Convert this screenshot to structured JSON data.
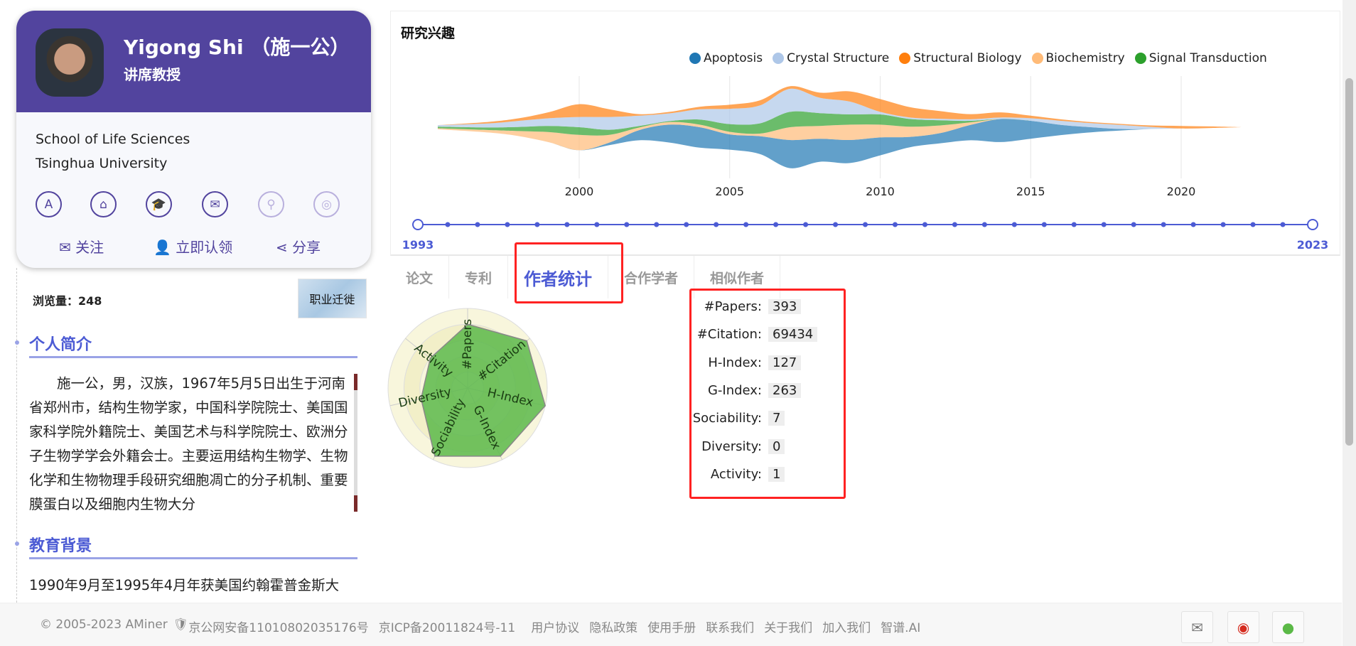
{
  "profile": {
    "name": "Yigong Shi （施一公）",
    "title": "讲席教授",
    "affiliation_1": "School of Life Sciences",
    "affiliation_2": "Tsinghua University",
    "icons": [
      "aminer-icon",
      "home-icon",
      "graduation-cap-icon",
      "mail-icon",
      "location-icon",
      "weibo-icon"
    ],
    "actions": {
      "follow": "关注",
      "claim": "立即认领",
      "share": "分享"
    }
  },
  "views": "浏览量：248",
  "migration_label": "职业迁徙",
  "bio": {
    "heading": "个人简介",
    "text": "施一公，男，汉族，1967年5月5日出生于河南省郑州市，结构生物学家，中国科学院院士、美国国家科学院外籍院士、美国艺术与科学院院士、欧洲分子生物学学会外籍会士。主要运用结构生物学、生物化学和生物物理手段研究细胞凋亡的分子机制、重要膜蛋白以及细胞内生物大分"
  },
  "education": {
    "heading": "教育背景",
    "text": "1990年9月至1995年4月年获美国约翰霍普金斯大"
  },
  "research": {
    "title": "研究兴趣",
    "timeline_start": "1993",
    "timeline_end": "2023"
  },
  "chart_data": {
    "type": "area",
    "subtype": "streamgraph",
    "title": "研究兴趣",
    "x": [
      1996,
      1997,
      1998,
      1999,
      2000,
      2001,
      2002,
      2003,
      2004,
      2005,
      2006,
      2007,
      2008,
      2009,
      2010,
      2011,
      2012,
      2013,
      2014,
      2015,
      2016,
      2017,
      2018,
      2019,
      2020,
      2021,
      2022
    ],
    "xticks": [
      "2000",
      "2005",
      "2010",
      "2015",
      "2020"
    ],
    "grid": true,
    "legend": "top",
    "series": [
      {
        "name": "Apoptosis",
        "color": "#1f77b4",
        "values": [
          0,
          0,
          0,
          0,
          0,
          5,
          20,
          35,
          40,
          30,
          35,
          55,
          45,
          45,
          35,
          20,
          20,
          30,
          45,
          35,
          20,
          10,
          3,
          0,
          0,
          0,
          0
        ]
      },
      {
        "name": "Biochemistry",
        "color": "#ffbb78",
        "values": [
          2,
          5,
          10,
          20,
          30,
          15,
          5,
          5,
          5,
          5,
          5,
          25,
          25,
          30,
          25,
          20,
          15,
          5,
          0,
          0,
          0,
          0,
          0,
          0,
          0,
          0,
          0
        ]
      },
      {
        "name": "Signal Transduction",
        "color": "#2ca02c",
        "values": [
          3,
          5,
          8,
          12,
          15,
          10,
          3,
          2,
          10,
          15,
          20,
          30,
          25,
          20,
          20,
          15,
          10,
          3,
          0,
          0,
          0,
          0,
          0,
          0,
          0,
          0,
          0
        ]
      },
      {
        "name": "Crystal Structure",
        "color": "#aec7e8",
        "values": [
          3,
          8,
          12,
          15,
          20,
          25,
          20,
          15,
          20,
          30,
          35,
          45,
          30,
          25,
          5,
          3,
          3,
          3,
          3,
          5,
          8,
          8,
          8,
          4,
          0,
          0,
          0
        ]
      },
      {
        "name": "Structural Biology",
        "color": "#ff7f0e",
        "values": [
          0,
          3,
          5,
          12,
          25,
          15,
          3,
          3,
          5,
          8,
          10,
          5,
          10,
          20,
          25,
          20,
          15,
          10,
          10,
          5,
          3,
          2,
          2,
          3,
          5,
          3,
          0
        ]
      }
    ],
    "legend_order": [
      0,
      3,
      4,
      1,
      2
    ]
  },
  "tabs": [
    "论文",
    "专利",
    "作者统计",
    "合作学者",
    "相似作者"
  ],
  "active_tab": 2,
  "stats": [
    {
      "k": "#Papers:",
      "v": "393"
    },
    {
      "k": "#Citation:",
      "v": "69434"
    },
    {
      "k": "H-Index:",
      "v": "127"
    },
    {
      "k": "G-Index:",
      "v": "263"
    },
    {
      "k": "Sociability:",
      "v": "7"
    },
    {
      "k": "Diversity:",
      "v": "0"
    },
    {
      "k": "Activity:",
      "v": "1"
    }
  ],
  "radar": {
    "axes": [
      "#Papers",
      "#Citation",
      "H-Index",
      "G-Index",
      "Sociability",
      "Diversity",
      "Activity"
    ],
    "levels": [
      0.8,
      0.95,
      1.0,
      0.95,
      0.95,
      0.6,
      0.6
    ],
    "fill": "#5cb84a"
  },
  "footer": {
    "copyright": "© 2005-2023 AMiner",
    "police": "京公网安备11010802035176号",
    "icp": "京ICP备20011824号-11",
    "links": [
      "用户协议",
      "隐私政策",
      "使用手册",
      "联系我们",
      "关于我们",
      "加入我们",
      "智谱.AI"
    ]
  }
}
